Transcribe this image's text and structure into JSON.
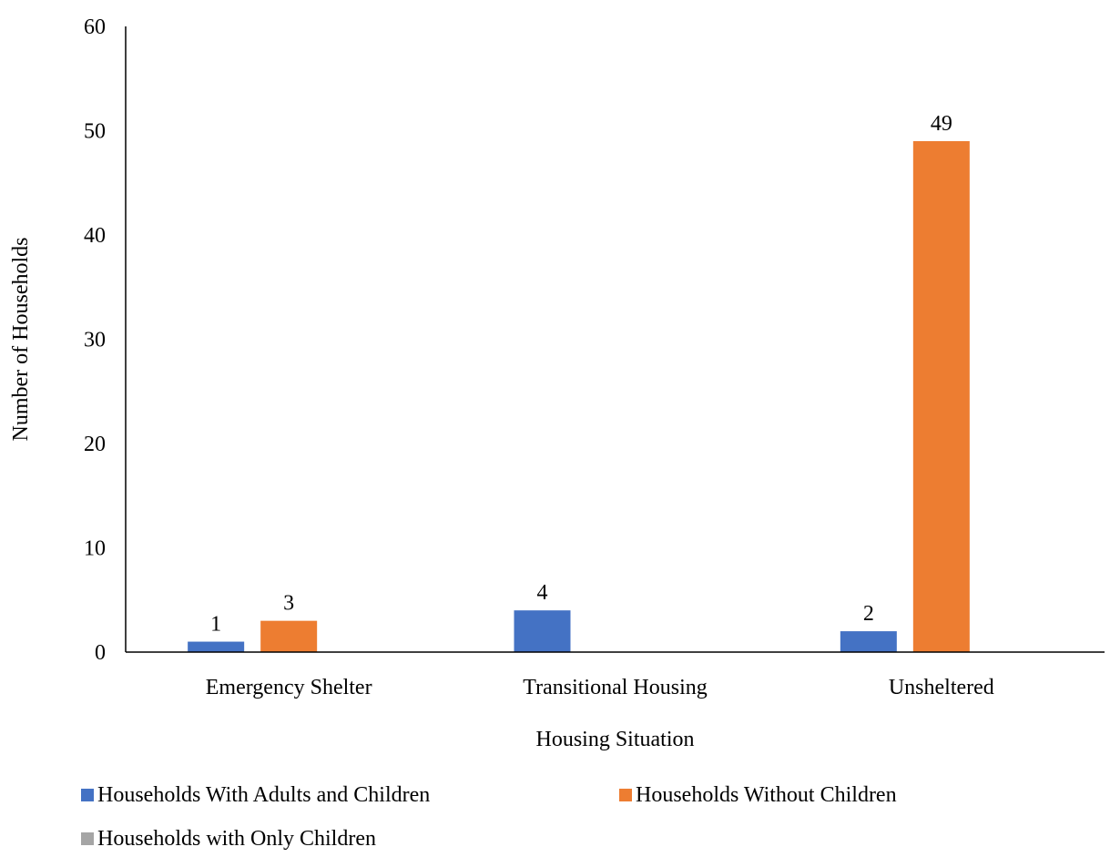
{
  "chart_data": {
    "type": "bar",
    "title": "",
    "xlabel": "Housing Situation",
    "ylabel": "Number of Households",
    "ylim": [
      0,
      60
    ],
    "yticks": [
      0,
      10,
      20,
      30,
      40,
      50,
      60
    ],
    "grid": false,
    "legend_position": "bottom",
    "categories": [
      "Emergency Shelter",
      "Transitional Housing",
      "Unsheltered"
    ],
    "series": [
      {
        "name": "Households With Adults and Children",
        "color": "#4472C4",
        "values": [
          1,
          4,
          2
        ]
      },
      {
        "name": "Households Without Children",
        "color": "#ED7D31",
        "values": [
          3,
          null,
          49
        ]
      },
      {
        "name": "Households with Only Children",
        "color": "#A5A5A5",
        "values": [
          null,
          null,
          null
        ]
      }
    ]
  }
}
